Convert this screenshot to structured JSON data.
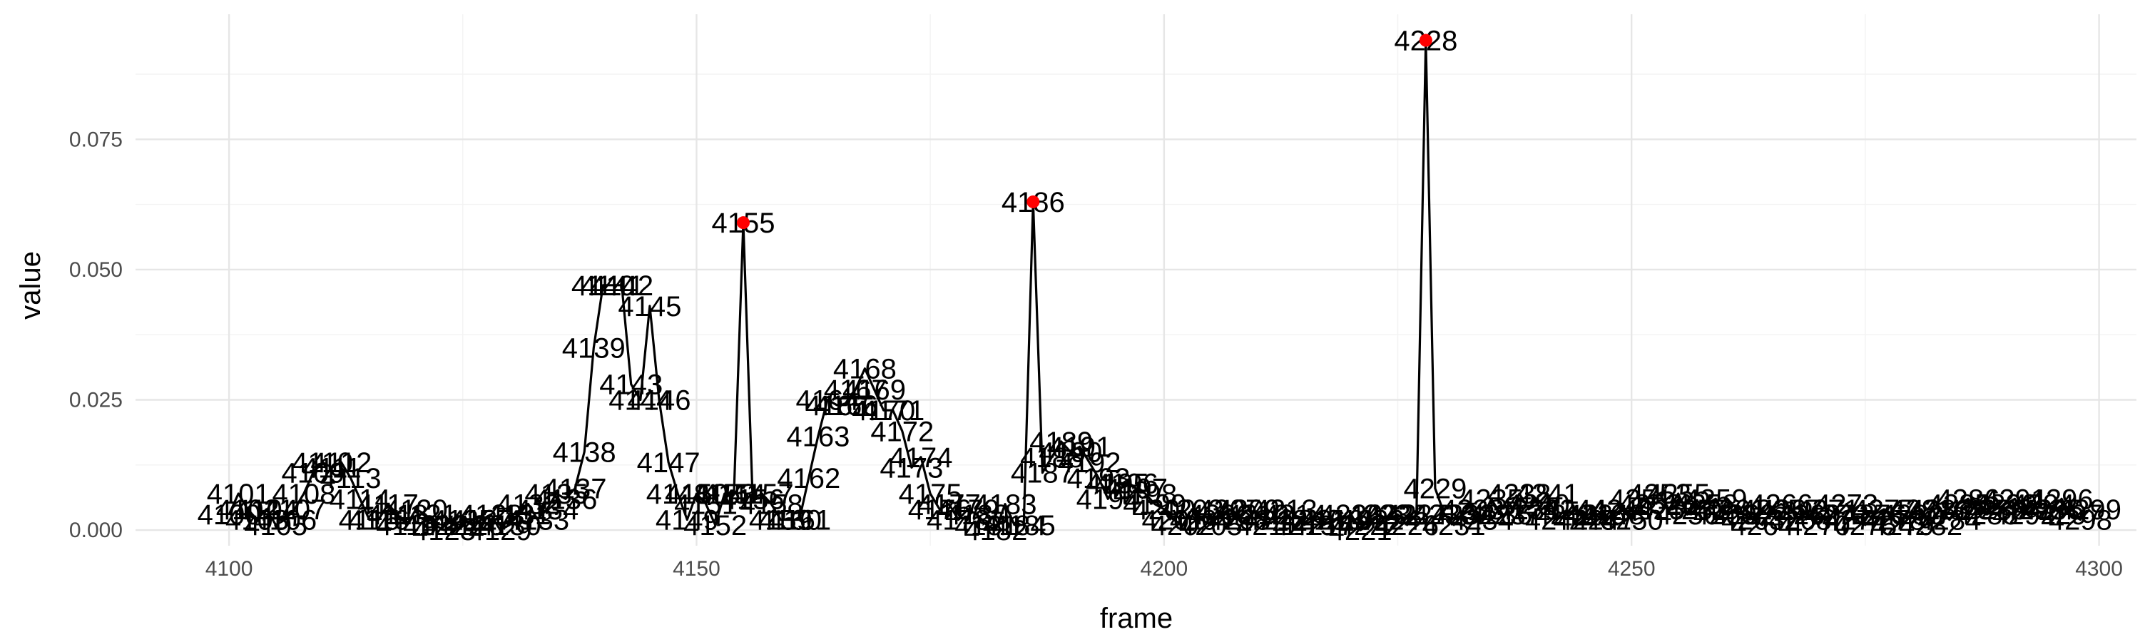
{
  "chart_data": {
    "type": "line",
    "xlabel": "frame",
    "ylabel": "value",
    "xlim": [
      4090,
      4304
    ],
    "ylim": [
      -0.003,
      0.099
    ],
    "x_ticks": [
      4100,
      4150,
      4200,
      4250,
      4300
    ],
    "x_tick_labels": [
      "4100",
      "4150",
      "4200",
      "4250",
      "4300"
    ],
    "y_ticks": [
      0.0,
      0.025,
      0.05,
      0.075
    ],
    "y_tick_labels": [
      "0.000",
      "0.025",
      "0.050",
      "0.075"
    ],
    "grid": true,
    "line_color": "#000000",
    "peak_color": "#ff0000",
    "frames": [
      4100,
      4101,
      4102,
      4103,
      4104,
      4105,
      4106,
      4107,
      4108,
      4109,
      4110,
      4111,
      4112,
      4113,
      4114,
      4115,
      4116,
      4117,
      4118,
      4119,
      4120,
      4121,
      4122,
      4123,
      4124,
      4125,
      4126,
      4127,
      4128,
      4129,
      4130,
      4131,
      4132,
      4133,
      4134,
      4135,
      4136,
      4137,
      4138,
      4139,
      4140,
      4141,
      4142,
      4143,
      4144,
      4145,
      4146,
      4147,
      4148,
      4149,
      4150,
      4151,
      4152,
      4153,
      4154,
      4155,
      4156,
      4157,
      4158,
      4159,
      4160,
      4161,
      4162,
      4163,
      4164,
      4165,
      4166,
      4167,
      4168,
      4169,
      4170,
      4171,
      4172,
      4173,
      4174,
      4175,
      4176,
      4177,
      4178,
      4179,
      4180,
      4181,
      4182,
      4183,
      4184,
      4185,
      4186,
      4187,
      4188,
      4189,
      4190,
      4191,
      4192,
      4193,
      4194,
      4195,
      4196,
      4197,
      4198,
      4199,
      4200,
      4201,
      4202,
      4203,
      4204,
      4205,
      4206,
      4207,
      4208,
      4209,
      4210,
      4211,
      4212,
      4213,
      4214,
      4215,
      4216,
      4217,
      4218,
      4219,
      4220,
      4221,
      4222,
      4223,
      4224,
      4225,
      4226,
      4227,
      4228,
      4229,
      4230,
      4231,
      4232,
      4233,
      4234,
      4235,
      4236,
      4237,
      4238,
      4239,
      4240,
      4241,
      4242,
      4243,
      4244,
      4245,
      4246,
      4247,
      4248,
      4249,
      4250,
      4251,
      4252,
      4253,
      4254,
      4255,
      4256,
      4257,
      4258,
      4259,
      4260,
      4261,
      4262,
      4263,
      4264,
      4265,
      4266,
      4267,
      4268,
      4269,
      4270,
      4271,
      4272,
      4273,
      4274,
      4275,
      4276,
      4277,
      4278,
      4279,
      4280,
      4281,
      4282,
      4283,
      4284,
      4285,
      4286,
      4287,
      4288,
      4289,
      4290,
      4291,
      4292,
      4293,
      4294,
      4295,
      4296,
      4297,
      4298,
      4299
    ],
    "values": [
      0.003,
      0.007,
      0.004,
      0.002,
      0.004,
      0.001,
      0.002,
      0.004,
      0.007,
      0.011,
      0.013,
      0.012,
      0.013,
      0.01,
      0.006,
      0.002,
      0.002,
      0.005,
      0.003,
      0.001,
      0.004,
      0.003,
      0.001,
      0.0,
      0.001,
      0.002,
      0.001,
      0.002,
      0.003,
      0.0,
      0.001,
      0.003,
      0.005,
      0.002,
      0.004,
      0.007,
      0.006,
      0.008,
      0.015,
      0.035,
      0.047,
      0.047,
      0.047,
      0.028,
      0.025,
      0.043,
      0.025,
      0.013,
      0.007,
      0.002,
      0.007,
      0.005,
      0.001,
      0.007,
      0.007,
      0.059,
      0.006,
      0.007,
      0.005,
      0.002,
      0.002,
      0.002,
      0.01,
      0.018,
      0.025,
      0.024,
      0.024,
      0.027,
      0.031,
      0.027,
      0.023,
      0.023,
      0.019,
      0.012,
      0.014,
      0.007,
      0.004,
      0.005,
      0.002,
      0.004,
      0.003,
      0.001,
      0.0,
      0.005,
      0.001,
      0.001,
      0.063,
      0.011,
      0.014,
      0.017,
      0.015,
      0.016,
      0.013,
      0.01,
      0.006,
      0.009,
      0.009,
      0.008,
      0.007,
      0.005,
      0.004,
      0.002,
      0.001,
      0.004,
      0.002,
      0.001,
      0.003,
      0.004,
      0.002,
      0.004,
      0.003,
      0.001,
      0.002,
      0.004,
      0.003,
      0.001,
      0.002,
      0.001,
      0.002,
      0.002,
      0.003,
      0.0,
      0.001,
      0.003,
      0.002,
      0.003,
      0.001,
      0.003,
      0.094,
      0.008,
      0.003,
      0.001,
      0.003,
      0.004,
      0.002,
      0.006,
      0.003,
      0.003,
      0.007,
      0.004,
      0.005,
      0.007,
      0.002,
      0.003,
      0.004,
      0.002,
      0.003,
      0.002,
      0.003,
      0.004,
      0.002,
      0.006,
      0.005,
      0.007,
      0.004,
      0.007,
      0.003,
      0.004,
      0.005,
      0.006,
      0.003,
      0.004,
      0.003,
      0.002,
      0.001,
      0.004,
      0.005,
      0.004,
      0.002,
      0.003,
      0.001,
      0.004,
      0.003,
      0.005,
      0.002,
      0.001,
      0.003,
      0.004,
      0.002,
      0.001,
      0.003,
      0.004,
      0.001,
      0.004,
      0.002,
      0.005,
      0.006,
      0.004,
      0.003,
      0.004,
      0.005,
      0.006,
      0.003,
      0.004,
      0.005,
      0.004,
      0.006,
      0.003,
      0.002,
      0.004,
      0.005,
      0.003,
      0.002,
      0.006,
      0.004,
      0.005
    ],
    "peaks": [
      {
        "frame": 4155,
        "value": 0.059
      },
      {
        "frame": 4186,
        "value": 0.063
      },
      {
        "frame": 4228,
        "value": 0.094
      }
    ]
  }
}
